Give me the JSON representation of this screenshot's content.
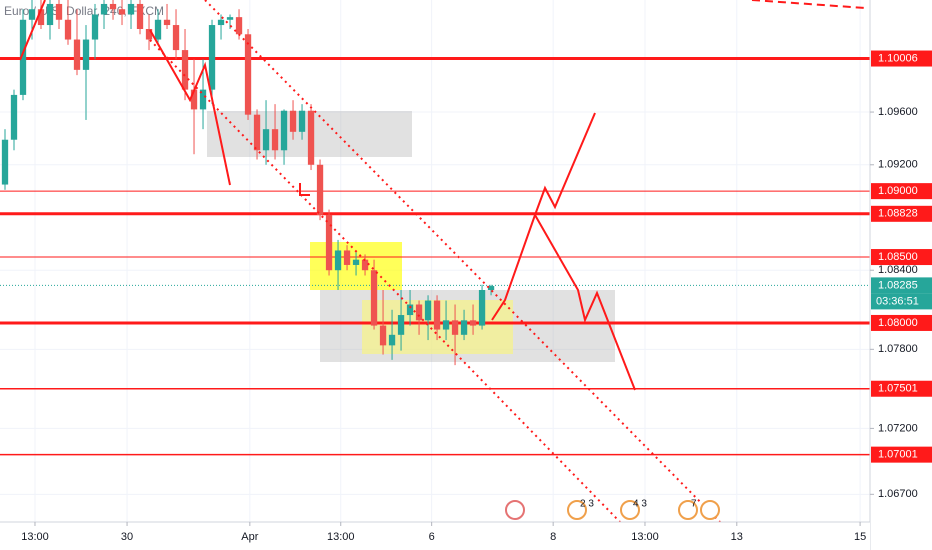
{
  "chart_data": {
    "type": "candlestick",
    "title": "Euro / U.S. Dollar, 240, FXCM",
    "xlim": [
      -0.556,
      96.1
    ],
    "xticks": [
      {
        "value": 3.33,
        "label": "13:00"
      },
      {
        "value": 13.56,
        "label": "30"
      },
      {
        "value": 27.2,
        "label": "Apr"
      },
      {
        "value": 37.3,
        "label": "13:00"
      },
      {
        "value": 47.4,
        "label": "6"
      },
      {
        "value": 60.9,
        "label": "8"
      },
      {
        "value": 71.1,
        "label": "13:00"
      },
      {
        "value": 81.3,
        "label": "13"
      },
      {
        "value": 95,
        "label": "15"
      }
    ],
    "ylim": [
      1.0649,
      1.1045
    ],
    "yticks": [
      {
        "value": 1.096,
        "label": "1.09600"
      },
      {
        "value": 1.092,
        "label": "1.09200"
      },
      {
        "value": 1.084,
        "label": "1.08400"
      },
      {
        "value": 1.078,
        "label": "1.07800"
      },
      {
        "value": 1.072,
        "label": "1.07200"
      },
      {
        "value": 1.067,
        "label": "1.06700"
      }
    ],
    "grid": true,
    "up_color": "#26a69a",
    "down_color": "#ef5350",
    "open": [
      1.0905,
      1.0939,
      1.0973,
      1.103,
      1.1038,
      1.1026,
      1.1042,
      1.103,
      1.1015,
      1.0992,
      1.1015,
      1.1034,
      1.1042,
      1.1038,
      1.1034,
      1.1042,
      1.1023,
      1.1015,
      1.103,
      1.1026,
      1.1007,
      1.0977,
      1.0962,
      1.0977,
      1.1026,
      1.103,
      1.1032,
      1.1019,
      1.0958,
      1.0931,
      1.0947,
      1.0931,
      1.0961,
      1.0945,
      1.0961,
      1.092,
      1.0882,
      1.084,
      1.0855,
      1.0844,
      1.0848,
      1.084,
      1.0798,
      1.0783,
      1.0791,
      1.0806,
      1.0814,
      1.0802,
      1.0817,
      1.0795,
      1.0802,
      1.0791,
      1.0802,
      1.0798,
      1.0825
    ],
    "high": [
      1.0947,
      1.0977,
      1.1038,
      1.1045,
      1.1045,
      1.1045,
      1.1045,
      1.1045,
      1.1038,
      1.1026,
      1.1042,
      1.1045,
      1.1045,
      1.1045,
      1.1045,
      1.1045,
      1.1034,
      1.1038,
      1.1042,
      1.1038,
      1.1023,
      1.1,
      1.1,
      1.103,
      1.1034,
      1.1034,
      1.1038,
      1.1023,
      1.0962,
      1.0969,
      1.0966,
      1.0962,
      1.0969,
      1.0966,
      1.0966,
      1.0924,
      1.0886,
      1.0863,
      1.0859,
      1.0855,
      1.0852,
      1.0848,
      1.0825,
      1.081,
      1.0825,
      1.0825,
      1.0817,
      1.0821,
      1.0821,
      1.0817,
      1.0814,
      1.081,
      1.0814,
      1.0829,
      1.0829
    ],
    "low": [
      1.0901,
      1.0931,
      1.0969,
      1.1015,
      1.1023,
      1.1015,
      1.1023,
      1.1011,
      1.0988,
      1.0954,
      1.1,
      1.1023,
      1.103,
      1.1026,
      1.1023,
      1.1019,
      1.1007,
      1.1011,
      1.1023,
      1.1,
      1.0969,
      1.0928,
      1.0947,
      1.0966,
      1.1015,
      1.1023,
      1.1015,
      1.0954,
      1.0924,
      1.092,
      1.0924,
      1.092,
      1.0939,
      1.0939,
      1.0916,
      1.0878,
      1.0836,
      1.0825,
      1.084,
      1.0836,
      1.0836,
      1.0795,
      1.0776,
      1.0772,
      1.0779,
      1.0798,
      1.0791,
      1.0787,
      1.0787,
      1.0787,
      1.0768,
      1.0787,
      1.0791,
      1.0795,
      1.0821
    ],
    "close": [
      1.0939,
      1.0973,
      1.103,
      1.1038,
      1.1026,
      1.1042,
      1.103,
      1.1015,
      1.0992,
      1.1015,
      1.1034,
      1.1042,
      1.1038,
      1.1034,
      1.1042,
      1.1023,
      1.1015,
      1.103,
      1.1026,
      1.1007,
      1.0977,
      1.0962,
      1.0977,
      1.1026,
      1.103,
      1.1032,
      1.1019,
      1.0958,
      1.0931,
      1.0947,
      1.0931,
      1.0961,
      1.0945,
      1.0961,
      1.092,
      1.0882,
      1.084,
      1.0855,
      1.0844,
      1.0848,
      1.084,
      1.0798,
      1.0783,
      1.0791,
      1.0806,
      1.0814,
      1.0802,
      1.0817,
      1.0795,
      1.0802,
      1.0791,
      1.0802,
      1.0798,
      1.0825,
      1.0828
    ],
    "levels": [
      {
        "value": 1.10006,
        "label": "1.10006",
        "width": 3
      },
      {
        "value": 1.09,
        "label": "1.09000",
        "width": 1
      },
      {
        "value": 1.08828,
        "label": "1.08828",
        "width": 3
      },
      {
        "value": 1.085,
        "label": "1.08500",
        "width": 1
      },
      {
        "value": 1.08,
        "label": "1.08000",
        "width": 3
      },
      {
        "value": 1.07501,
        "label": "1.07501",
        "width": 1.5
      },
      {
        "value": 1.07001,
        "label": "1.07001",
        "width": 1.5
      }
    ],
    "level_color": "#ff1a1a",
    "current": {
      "value": 1.08285,
      "label": "1.08285",
      "countdown": "03:36:51",
      "color": "#26a69a"
    },
    "events": [
      "2 3",
      "4 3",
      "7"
    ]
  }
}
